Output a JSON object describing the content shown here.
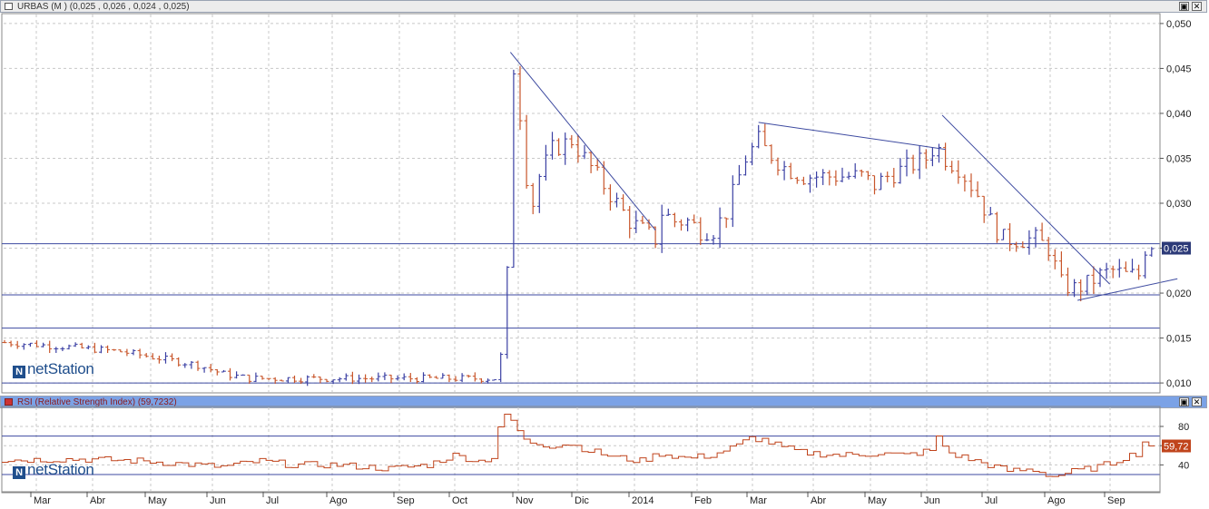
{
  "panels": {
    "price_title": "URBAS (M ) (0,025 , 0,026 , 0,024 , 0,025)",
    "rsi_title": "RSI (Relative Strength Index) (59,7232)",
    "maximize_glyph": "▣",
    "close_glyph": "✕"
  },
  "logo": {
    "text": "netStation",
    "mark": "N"
  },
  "current_price_label": "0,025",
  "current_rsi_label": "59,72",
  "colors": {
    "up": "#3a3fa3",
    "down": "#c8552a",
    "line": "#3d4aa0",
    "rsi": "#c0441c",
    "label_bg": "#2c3a78"
  },
  "x_axis": {
    "months": [
      "Mar",
      "Abr",
      "May",
      "Jun",
      "Jul",
      "Ago",
      "Sep",
      "Oct",
      "Nov",
      "Dic",
      "2014",
      "Feb",
      "Mar",
      "Abr",
      "May",
      "Jun",
      "Jul",
      "Ago",
      "Sep"
    ]
  },
  "chart_data": [
    {
      "type": "ohlc",
      "ylim": [
        0.009,
        0.051
      ],
      "yticks": [
        "0,010",
        "0,015",
        "0,020",
        "0,025",
        "0,030",
        "0,035",
        "0,040",
        "0,045",
        "0,050"
      ],
      "ytick_values": [
        0.01,
        0.015,
        0.02,
        0.025,
        0.03,
        0.035,
        0.04,
        0.045,
        0.05
      ],
      "grid": true,
      "price_anchors": [
        [
          0,
          0.0145
        ],
        [
          10,
          0.014
        ],
        [
          18,
          0.0135
        ],
        [
          22,
          0.013
        ],
        [
          30,
          0.012
        ],
        [
          34,
          0.011
        ],
        [
          38,
          0.0105
        ],
        [
          55,
          0.0105
        ],
        [
          76,
          0.0105
        ],
        [
          77,
          0.013
        ],
        [
          78,
          0.022
        ],
        [
          79,
          0.045
        ],
        [
          80,
          0.04
        ],
        [
          81,
          0.033
        ],
        [
          82,
          0.03
        ],
        [
          83,
          0.033
        ],
        [
          85,
          0.036
        ],
        [
          88,
          0.037
        ],
        [
          91,
          0.034
        ],
        [
          94,
          0.031
        ],
        [
          97,
          0.028
        ],
        [
          99,
          0.027
        ],
        [
          101,
          0.026
        ],
        [
          102,
          0.029
        ],
        [
          104,
          0.028
        ],
        [
          106,
          0.028
        ],
        [
          108,
          0.027
        ],
        [
          110,
          0.027
        ],
        [
          112,
          0.029
        ],
        [
          114,
          0.033
        ],
        [
          115,
          0.035
        ],
        [
          117,
          0.037
        ],
        [
          118,
          0.036
        ],
        [
          121,
          0.034
        ],
        [
          124,
          0.033
        ],
        [
          127,
          0.033
        ],
        [
          130,
          0.033
        ],
        [
          133,
          0.033
        ],
        [
          135,
          0.032
        ],
        [
          137,
          0.033
        ],
        [
          140,
          0.034
        ],
        [
          143,
          0.035
        ],
        [
          144,
          0.036
        ],
        [
          145,
          0.036
        ],
        [
          146,
          0.035
        ],
        [
          148,
          0.034
        ],
        [
          151,
          0.031
        ],
        [
          153,
          0.028
        ],
        [
          155,
          0.026
        ],
        [
          157,
          0.026
        ],
        [
          160,
          0.026
        ],
        [
          162,
          0.025
        ],
        [
          163,
          0.023
        ],
        [
          164,
          0.021
        ],
        [
          166,
          0.0205
        ],
        [
          168,
          0.021
        ],
        [
          170,
          0.022
        ],
        [
          172,
          0.0225
        ],
        [
          174,
          0.022
        ],
        [
          176,
          0.022
        ],
        [
          177,
          0.025
        ],
        [
          178,
          0.0255
        ]
      ],
      "trendlines": [
        {
          "x1": 78.5,
          "y1": 0.0468,
          "x2": 101,
          "y2": 0.027
        },
        {
          "x1": 117,
          "y1": 0.039,
          "x2": 146,
          "y2": 0.036
        },
        {
          "x1": 145.5,
          "y1": 0.0398,
          "x2": 171.5,
          "y2": 0.021
        },
        {
          "x1": 166.5,
          "y1": 0.0192,
          "x2": 182,
          "y2": 0.0216
        }
      ],
      "hlines": [
        0.0255,
        0.0198,
        0.0161,
        0.01
      ],
      "n_bars": 179,
      "last_value": 0.025
    },
    {
      "type": "line",
      "ylim": [
        13,
        97
      ],
      "yticks": [
        "40",
        "60",
        "80"
      ],
      "ytick_values": [
        40,
        60,
        80
      ],
      "reference_lines": [
        70,
        30
      ],
      "rsi_anchors": [
        [
          0,
          45
        ],
        [
          12,
          46
        ],
        [
          22,
          44
        ],
        [
          30,
          40
        ],
        [
          34,
          38
        ],
        [
          40,
          44
        ],
        [
          45,
          40
        ],
        [
          52,
          40
        ],
        [
          60,
          36
        ],
        [
          66,
          40
        ],
        [
          70,
          50
        ],
        [
          74,
          44
        ],
        [
          76,
          48
        ],
        [
          77,
          80
        ],
        [
          78,
          90
        ],
        [
          79,
          86
        ],
        [
          81,
          65
        ],
        [
          85,
          60
        ],
        [
          88,
          62
        ],
        [
          91,
          55
        ],
        [
          95,
          48
        ],
        [
          99,
          44
        ],
        [
          102,
          52
        ],
        [
          106,
          47
        ],
        [
          110,
          50
        ],
        [
          114,
          60
        ],
        [
          116,
          68
        ],
        [
          118,
          66
        ],
        [
          121,
          58
        ],
        [
          124,
          53
        ],
        [
          130,
          50
        ],
        [
          136,
          52
        ],
        [
          140,
          50
        ],
        [
          144,
          55
        ],
        [
          145,
          68
        ],
        [
          147,
          52
        ],
        [
          151,
          44
        ],
        [
          156,
          34
        ],
        [
          160,
          35
        ],
        [
          163,
          28
        ],
        [
          166,
          33
        ],
        [
          170,
          38
        ],
        [
          172,
          42
        ],
        [
          174,
          48
        ],
        [
          176,
          52
        ],
        [
          177,
          64
        ],
        [
          178,
          59.7
        ]
      ],
      "last_value": 59.72
    }
  ]
}
